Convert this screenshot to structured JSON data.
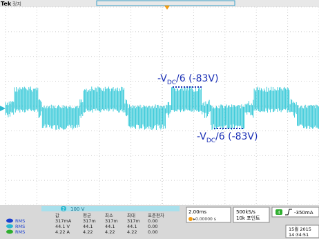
{
  "header": {
    "brand": "Tek",
    "status": "정지"
  },
  "annotations": [
    {
      "prefix": "-V",
      "subscript": "DC",
      "suffix": "/6 (-83V)"
    },
    {
      "prefix": "-V",
      "subscript": "DC",
      "suffix": "/6 (-83V)"
    }
  ],
  "channel": {
    "number": "2",
    "scale": "100 V"
  },
  "table": {
    "headers": [
      "값",
      "평균",
      "최소",
      "최대",
      "표준편차"
    ],
    "rows": [
      [
        "RMS",
        "317mA",
        "317m",
        "317m",
        "317m",
        "0.00"
      ],
      [
        "RMS",
        "44.1 V",
        "44.1",
        "44.1",
        "44.1",
        "0.00"
      ],
      [
        "RMS",
        "4.22 A",
        "4.22",
        "4.22",
        "4.22",
        "0.00"
      ]
    ]
  },
  "timebase": {
    "scale": "2.00ms",
    "position": "▸0.00000 s"
  },
  "acquisition": {
    "rate": "500kS/s",
    "points": "10k 포인트"
  },
  "trigger": {
    "channel": "4",
    "level": "-350mA"
  },
  "datetime": {
    "date": "15월 2015",
    "time": "14:34:51"
  }
}
